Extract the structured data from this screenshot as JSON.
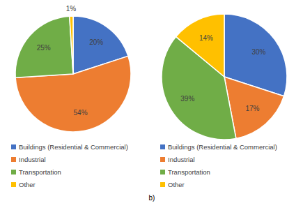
{
  "chart_data": [
    {
      "type": "pie",
      "categories": [
        "Buildings (Residential & Commercial)",
        "Industrial",
        "Transportation",
        "Other"
      ],
      "values": [
        20,
        54,
        25,
        1
      ],
      "value_labels": [
        "20%",
        "54%",
        "25%",
        "1%"
      ],
      "colors": [
        "#4472c4",
        "#ed7d31",
        "#70ad47",
        "#ffc000"
      ],
      "data_labels": true,
      "legend": "bottom"
    },
    {
      "type": "pie",
      "categories": [
        "Buildings (Residential & Commercial)",
        "Industrial",
        "Transportation",
        "Other"
      ],
      "values": [
        30,
        17,
        39,
        14
      ],
      "value_labels": [
        "30%",
        "17%",
        "39%",
        "14%"
      ],
      "colors": [
        "#4472c4",
        "#ed7d31",
        "#70ad47",
        "#ffc000"
      ],
      "data_labels": true,
      "legend": "bottom"
    }
  ],
  "caption": "b)"
}
